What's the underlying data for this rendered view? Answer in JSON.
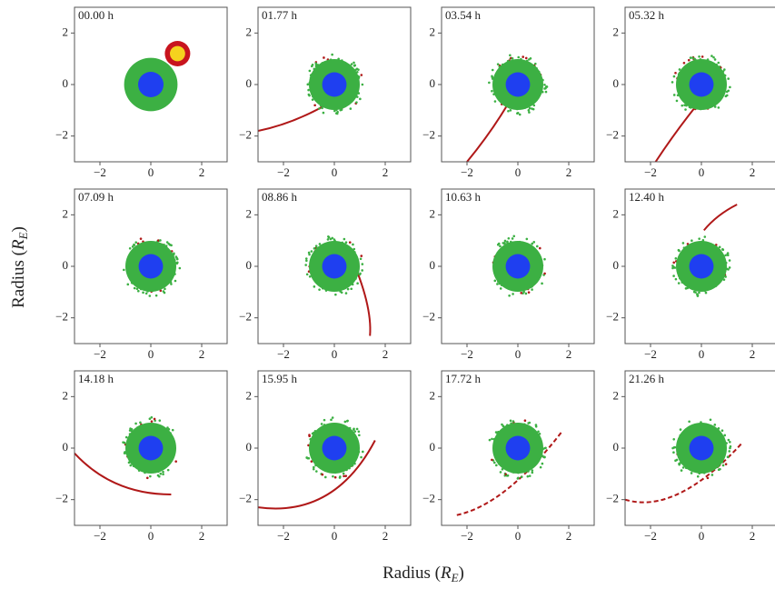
{
  "figure": {
    "panels": [
      {
        "label": "00.00 h"
      },
      {
        "label": "01.77 h"
      },
      {
        "label": "03.54 h"
      },
      {
        "label": "05.32 h"
      },
      {
        "label": "07.09 h"
      },
      {
        "label": "08.86 h"
      },
      {
        "label": "10.63 h"
      },
      {
        "label": "12.40 h"
      },
      {
        "label": "14.18 h"
      },
      {
        "label": "15.95 h"
      },
      {
        "label": "17.72 h"
      },
      {
        "label": "21.26 h"
      }
    ],
    "xlim": [
      -3,
      3
    ],
    "ylim": [
      -3,
      3
    ],
    "xticks": [
      {
        "value": -2,
        "label": "−2"
      },
      0,
      2
    ],
    "yticks": [
      {
        "value": -2,
        "label": "−2"
      },
      0,
      2
    ],
    "xlabel": {
      "text": "Radius (",
      "symbol": "R",
      "subscript": "E",
      "close": ")"
    },
    "ylabel": {
      "text": "Radius (",
      "symbol": "R",
      "subscript": "E",
      "close": ")"
    }
  }
}
